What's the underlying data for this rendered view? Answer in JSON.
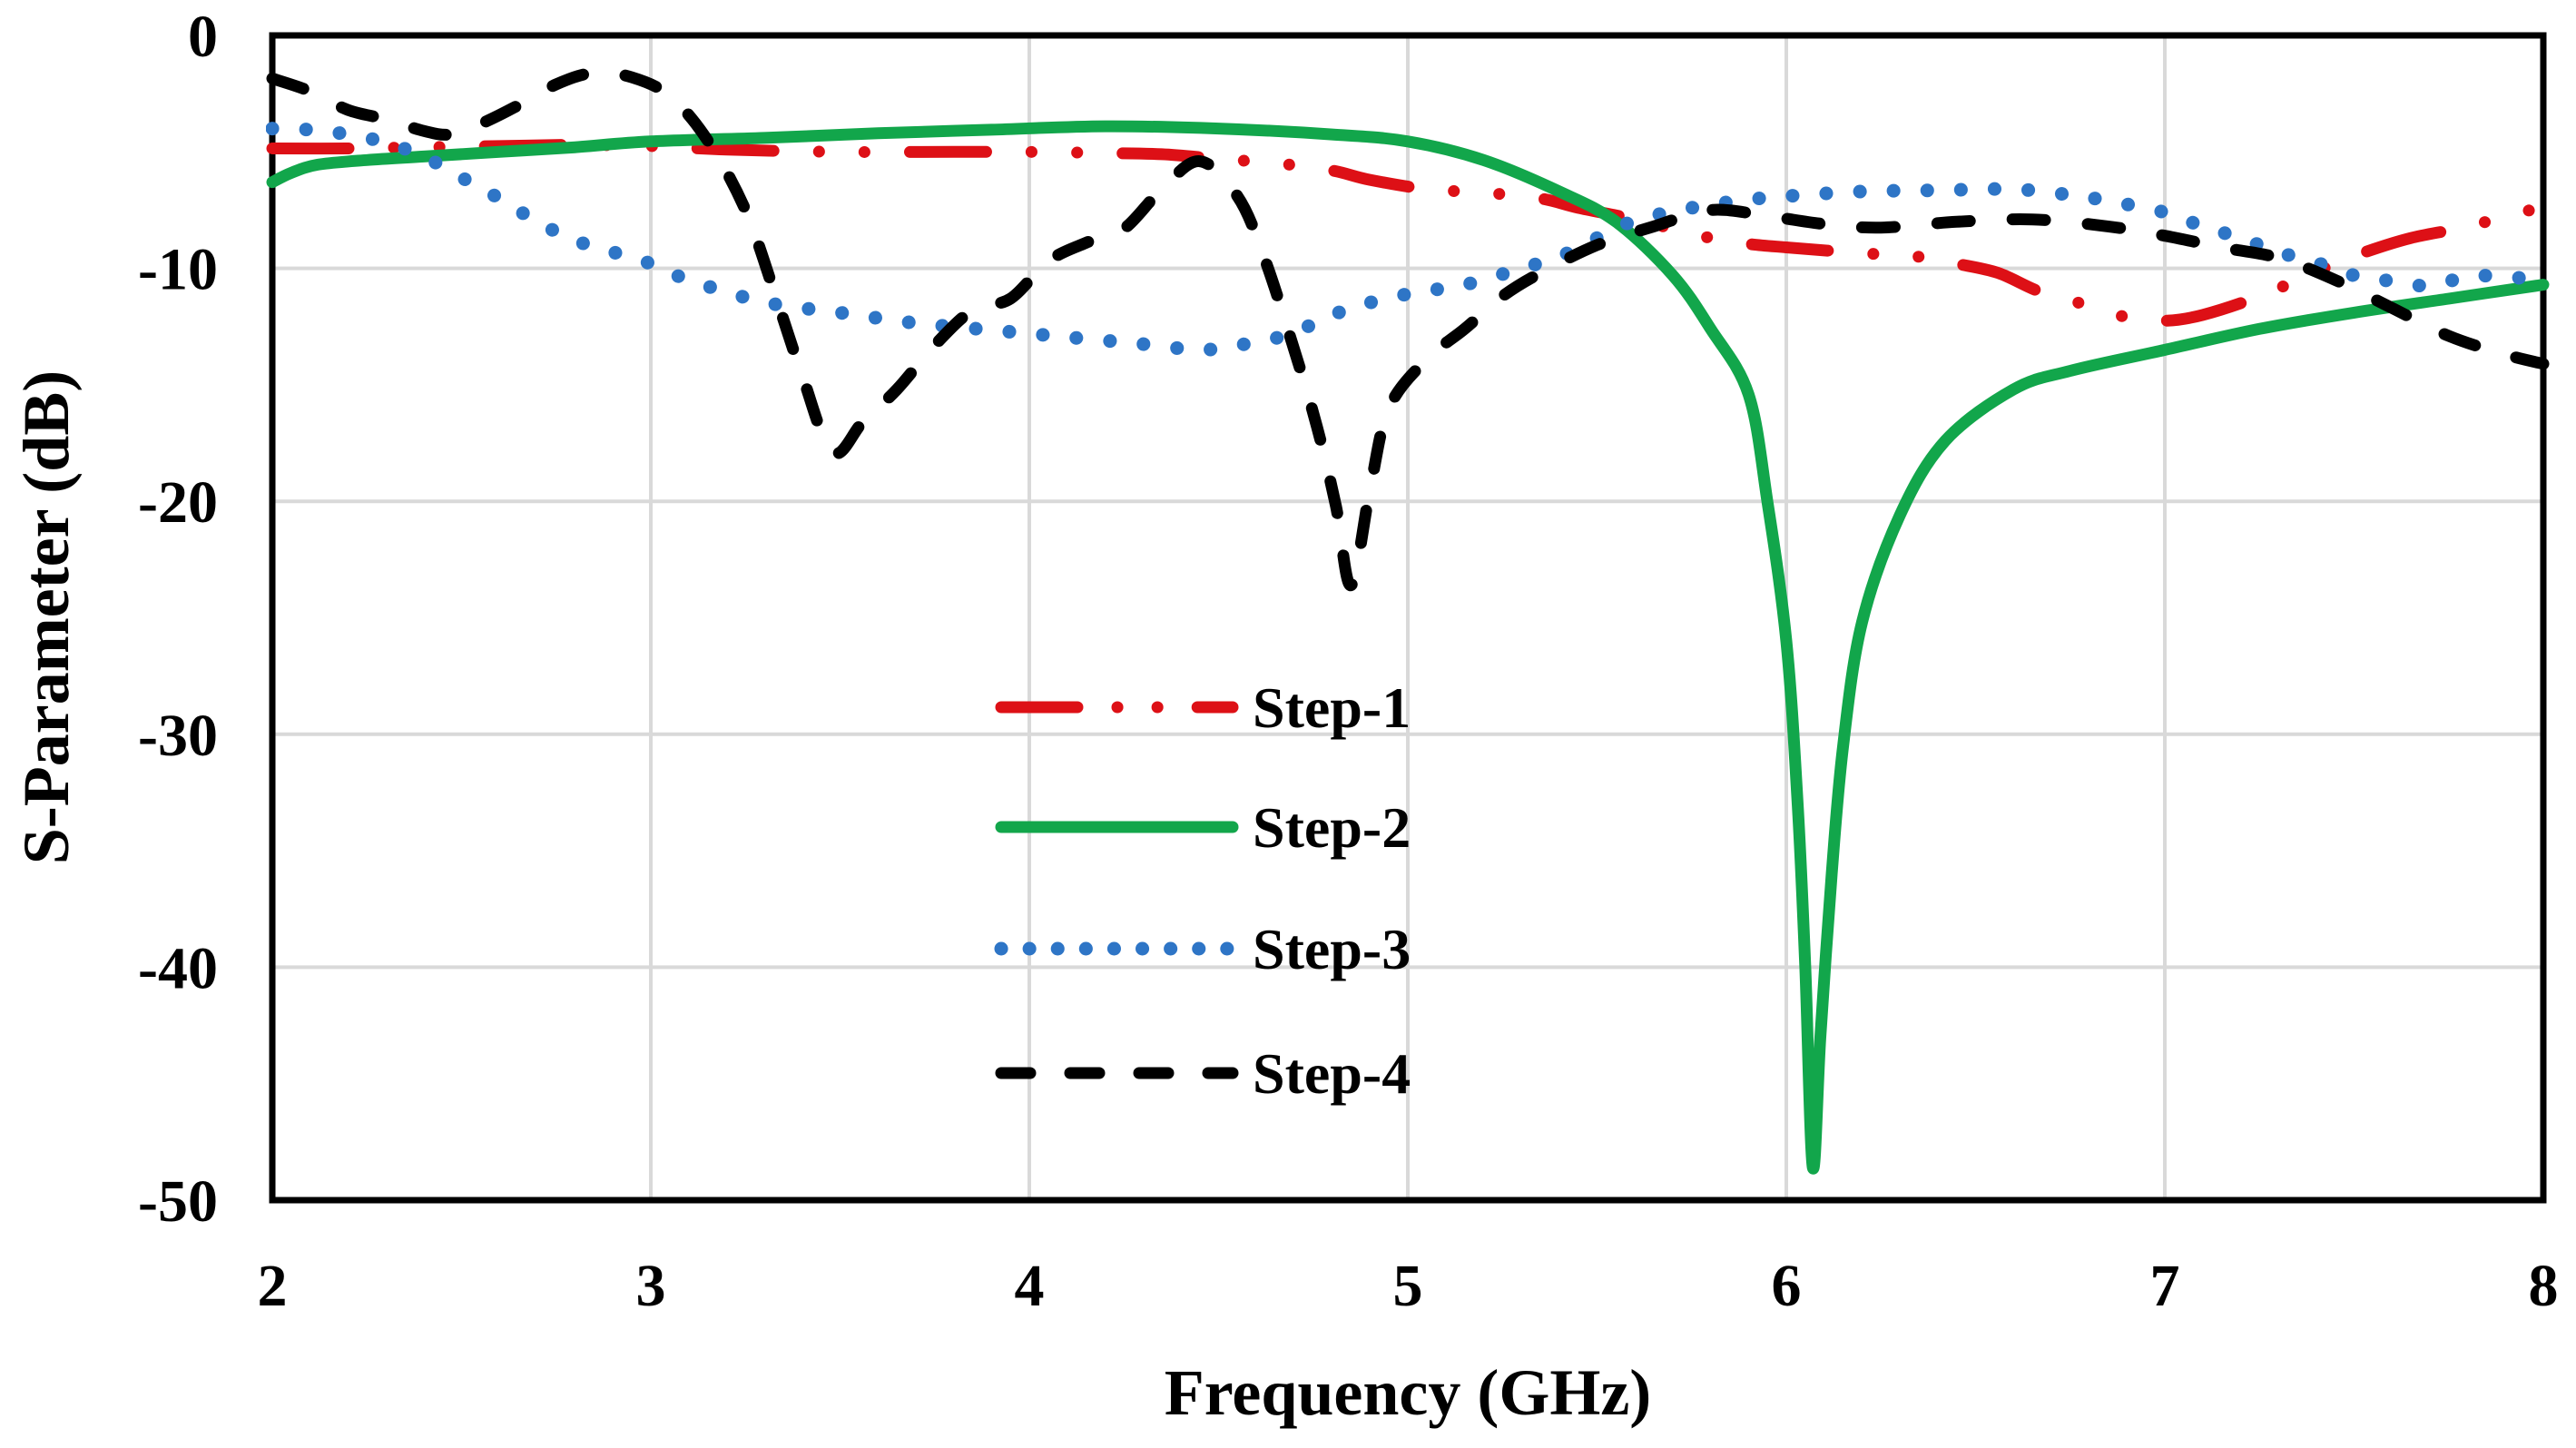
{
  "chart_data": {
    "type": "line",
    "title": "",
    "xlabel": "Frequency (GHz)",
    "ylabel": "S-Parameter (dB)",
    "xlim": [
      2,
      8
    ],
    "ylim": [
      -50,
      0
    ],
    "xticks": [
      2,
      3,
      4,
      5,
      6,
      7,
      8
    ],
    "yticks": [
      0,
      -10,
      -20,
      -30,
      -40,
      -50
    ],
    "x_tick_labels": [
      "2",
      "3",
      "4",
      "5",
      "6",
      "7",
      "8"
    ],
    "y_tick_labels": [
      "0",
      "-10",
      "-20",
      "-30",
      "-40",
      "-50"
    ],
    "grid": true,
    "grid_color": "#d9d9d9",
    "border_color": "#000000",
    "legend_position": "inside-center-left",
    "series": [
      {
        "name": "Step-1",
        "color": "#dd1016",
        "line_style": "dash-dot-dot",
        "points": [
          [
            2.0,
            -4.85
          ],
          [
            2.2,
            -4.85
          ],
          [
            2.4,
            -4.8
          ],
          [
            2.6,
            -4.75
          ],
          [
            2.8,
            -4.7
          ],
          [
            3.0,
            -4.75
          ],
          [
            3.2,
            -4.9
          ],
          [
            3.5,
            -5.0
          ],
          [
            3.8,
            -5.0
          ],
          [
            4.0,
            -5.0
          ],
          [
            4.2,
            -5.05
          ],
          [
            4.35,
            -5.1
          ],
          [
            4.5,
            -5.3
          ],
          [
            4.66,
            -5.5
          ],
          [
            4.8,
            -5.8
          ],
          [
            4.9,
            -6.2
          ],
          [
            5.05,
            -6.6
          ],
          [
            5.2,
            -6.75
          ],
          [
            5.35,
            -7.0
          ],
          [
            5.45,
            -7.4
          ],
          [
            5.6,
            -7.9
          ],
          [
            5.8,
            -8.7
          ],
          [
            5.9,
            -8.95
          ],
          [
            6.0,
            -9.1
          ],
          [
            6.2,
            -9.35
          ],
          [
            6.35,
            -9.5
          ],
          [
            6.45,
            -9.8
          ],
          [
            6.56,
            -10.2
          ],
          [
            6.67,
            -11.0
          ],
          [
            6.8,
            -11.6
          ],
          [
            6.9,
            -12.1
          ],
          [
            7.0,
            -12.25
          ],
          [
            7.1,
            -12.0
          ],
          [
            7.25,
            -11.2
          ],
          [
            7.42,
            -10.0
          ],
          [
            7.53,
            -9.3
          ],
          [
            7.65,
            -8.7
          ],
          [
            7.8,
            -8.2
          ],
          [
            8.0,
            -7.35
          ]
        ]
      },
      {
        "name": "Step-2",
        "color": "#12a64b",
        "line_style": "solid",
        "points": [
          [
            2.0,
            -6.3
          ],
          [
            2.05,
            -5.9
          ],
          [
            2.12,
            -5.55
          ],
          [
            2.25,
            -5.35
          ],
          [
            2.4,
            -5.2
          ],
          [
            2.6,
            -5.0
          ],
          [
            2.8,
            -4.8
          ],
          [
            3.0,
            -4.55
          ],
          [
            3.3,
            -4.4
          ],
          [
            3.6,
            -4.2
          ],
          [
            3.9,
            -4.05
          ],
          [
            4.2,
            -3.9
          ],
          [
            4.5,
            -4.0
          ],
          [
            4.8,
            -4.25
          ],
          [
            5.0,
            -4.55
          ],
          [
            5.2,
            -5.35
          ],
          [
            5.4,
            -6.7
          ],
          [
            5.55,
            -8.0
          ],
          [
            5.7,
            -10.3
          ],
          [
            5.8,
            -12.6
          ],
          [
            5.9,
            -15.4
          ],
          [
            5.95,
            -20.0
          ],
          [
            6.0,
            -26.0
          ],
          [
            6.03,
            -33.0
          ],
          [
            6.05,
            -40.0
          ],
          [
            6.07,
            -48.6
          ],
          [
            6.09,
            -43.0
          ],
          [
            6.12,
            -36.0
          ],
          [
            6.15,
            -30.5
          ],
          [
            6.2,
            -25.2
          ],
          [
            6.3,
            -20.6
          ],
          [
            6.42,
            -17.4
          ],
          [
            6.6,
            -15.2
          ],
          [
            6.75,
            -14.4
          ],
          [
            7.0,
            -13.5
          ],
          [
            7.25,
            -12.6
          ],
          [
            7.5,
            -11.9
          ],
          [
            7.75,
            -11.3
          ],
          [
            8.0,
            -10.7
          ]
        ]
      },
      {
        "name": "Step-3",
        "color": "#2e75c6",
        "line_style": "dotted",
        "points": [
          [
            2.0,
            -4.0
          ],
          [
            2.1,
            -4.05
          ],
          [
            2.2,
            -4.25
          ],
          [
            2.3,
            -4.6
          ],
          [
            2.4,
            -5.2
          ],
          [
            2.5,
            -6.1
          ],
          [
            2.6,
            -7.0
          ],
          [
            2.7,
            -8.0
          ],
          [
            2.8,
            -8.8
          ],
          [
            2.9,
            -9.3
          ],
          [
            3.0,
            -9.8
          ],
          [
            3.1,
            -10.5
          ],
          [
            3.3,
            -11.45
          ],
          [
            3.5,
            -11.9
          ],
          [
            3.7,
            -12.35
          ],
          [
            3.9,
            -12.65
          ],
          [
            4.1,
            -12.95
          ],
          [
            4.3,
            -13.25
          ],
          [
            4.45,
            -13.5
          ],
          [
            4.55,
            -13.3
          ],
          [
            4.65,
            -13.0
          ],
          [
            4.75,
            -12.4
          ],
          [
            4.85,
            -11.7
          ],
          [
            5.0,
            -11.1
          ],
          [
            5.15,
            -10.7
          ],
          [
            5.3,
            -10.0
          ],
          [
            5.4,
            -9.5
          ],
          [
            5.5,
            -8.7
          ],
          [
            5.6,
            -7.95
          ],
          [
            5.75,
            -7.4
          ],
          [
            5.9,
            -7.05
          ],
          [
            6.0,
            -6.9
          ],
          [
            6.2,
            -6.7
          ],
          [
            6.4,
            -6.65
          ],
          [
            6.6,
            -6.6
          ],
          [
            6.75,
            -6.85
          ],
          [
            6.85,
            -7.1
          ],
          [
            7.0,
            -7.6
          ],
          [
            7.1,
            -8.2
          ],
          [
            7.2,
            -8.7
          ],
          [
            7.3,
            -9.3
          ],
          [
            7.4,
            -9.75
          ],
          [
            7.5,
            -10.3
          ],
          [
            7.6,
            -10.55
          ],
          [
            7.7,
            -10.75
          ],
          [
            7.8,
            -10.35
          ],
          [
            7.9,
            -10.35
          ],
          [
            8.0,
            -10.55
          ]
        ]
      },
      {
        "name": "Step-4",
        "color": "#000000",
        "line_style": "dashed",
        "points": [
          [
            2.0,
            -1.85
          ],
          [
            2.1,
            -2.4
          ],
          [
            2.2,
            -3.2
          ],
          [
            2.3,
            -3.6
          ],
          [
            2.4,
            -4.1
          ],
          [
            2.47,
            -4.25
          ],
          [
            2.55,
            -3.8
          ],
          [
            2.65,
            -3.0
          ],
          [
            2.75,
            -2.1
          ],
          [
            2.85,
            -1.6
          ],
          [
            2.95,
            -1.8
          ],
          [
            3.05,
            -2.6
          ],
          [
            3.15,
            -4.5
          ],
          [
            3.25,
            -7.5
          ],
          [
            3.33,
            -11.2
          ],
          [
            3.4,
            -14.6
          ],
          [
            3.48,
            -17.9
          ],
          [
            3.56,
            -16.6
          ],
          [
            3.65,
            -15.2
          ],
          [
            3.75,
            -13.3
          ],
          [
            3.85,
            -11.8
          ],
          [
            3.95,
            -11.3
          ],
          [
            4.05,
            -9.7
          ],
          [
            4.15,
            -8.9
          ],
          [
            4.25,
            -8.3
          ],
          [
            4.35,
            -6.6
          ],
          [
            4.45,
            -5.4
          ],
          [
            4.55,
            -6.9
          ],
          [
            4.62,
            -9.5
          ],
          [
            4.7,
            -13.5
          ],
          [
            4.76,
            -16.8
          ],
          [
            4.81,
            -20.2
          ],
          [
            4.85,
            -23.6
          ],
          [
            4.9,
            -19.5
          ],
          [
            4.95,
            -16.0
          ],
          [
            5.05,
            -13.9
          ],
          [
            5.15,
            -12.6
          ],
          [
            5.25,
            -11.2
          ],
          [
            5.35,
            -10.2
          ],
          [
            5.5,
            -9.0
          ],
          [
            5.65,
            -8.2
          ],
          [
            5.8,
            -7.5
          ],
          [
            5.95,
            -7.75
          ],
          [
            6.1,
            -8.1
          ],
          [
            6.25,
            -8.25
          ],
          [
            6.45,
            -8.0
          ],
          [
            6.65,
            -7.9
          ],
          [
            6.85,
            -8.2
          ],
          [
            7.0,
            -8.6
          ],
          [
            7.15,
            -9.1
          ],
          [
            7.3,
            -9.55
          ],
          [
            7.45,
            -10.5
          ],
          [
            7.6,
            -11.7
          ],
          [
            7.75,
            -12.9
          ],
          [
            7.9,
            -13.7
          ],
          [
            8.0,
            -14.1
          ]
        ]
      }
    ]
  }
}
